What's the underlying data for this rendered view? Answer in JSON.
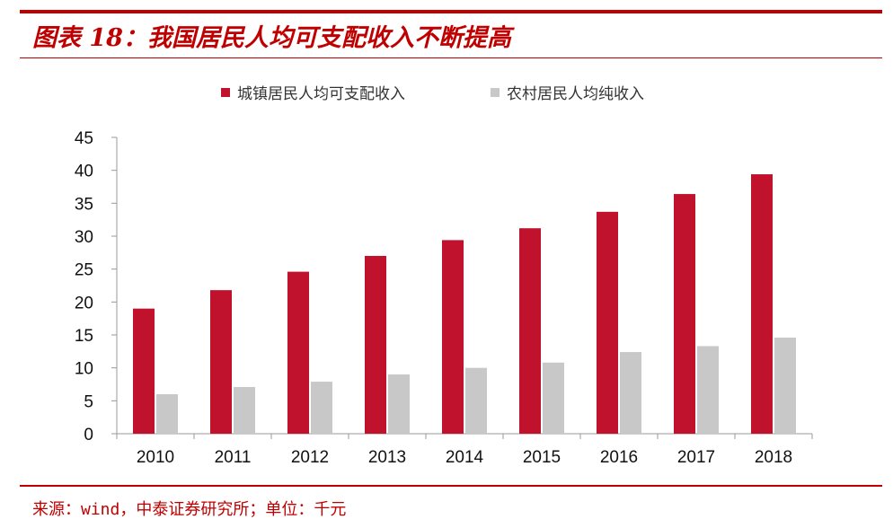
{
  "header": {
    "title": "图表 18：我国居民人均可支配收入不断提高"
  },
  "footer": {
    "source": "来源：wind，中泰证券研究所；单位：千元"
  },
  "chart_data": {
    "type": "bar",
    "categories": [
      "2010",
      "2011",
      "2012",
      "2013",
      "2014",
      "2015",
      "2016",
      "2017",
      "2018"
    ],
    "series": [
      {
        "name": "城镇居民人均可支配收入",
        "color": "#c0122c",
        "values": [
          19.0,
          21.8,
          24.6,
          27.0,
          29.4,
          31.2,
          33.7,
          36.4,
          39.4
        ]
      },
      {
        "name": "农村居民人均纯收入",
        "color": "#c8c8c8",
        "values": [
          6.0,
          7.1,
          7.9,
          9.0,
          10.0,
          10.8,
          12.4,
          13.3,
          14.6
        ]
      }
    ],
    "ylim": [
      0,
      45
    ],
    "yticks": [
      "0",
      "5",
      "10",
      "15",
      "20",
      "25",
      "30",
      "35",
      "40",
      "45"
    ],
    "legend_position": "top-center",
    "grid": false
  }
}
